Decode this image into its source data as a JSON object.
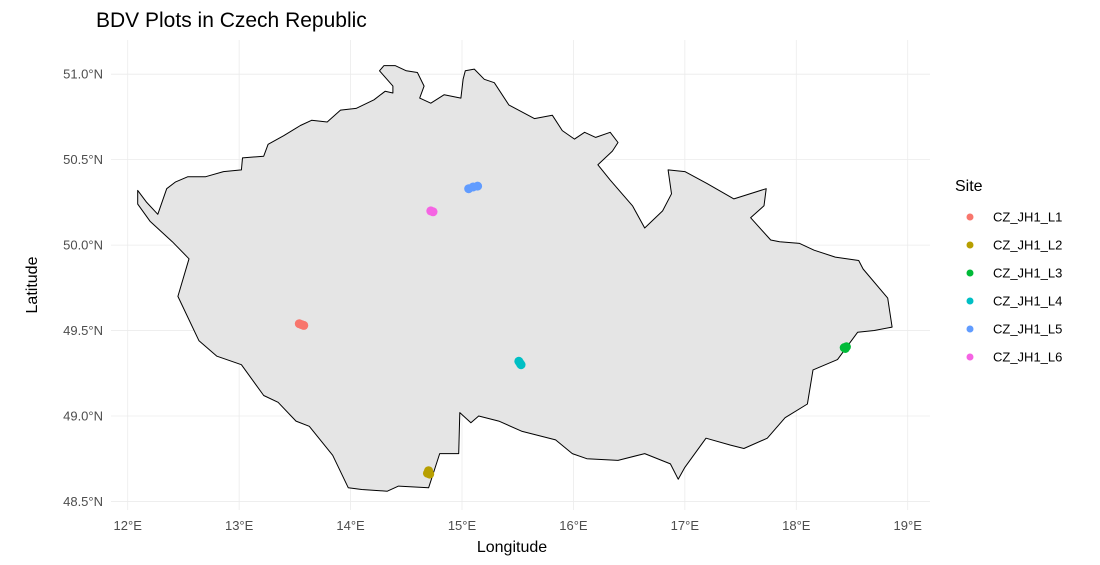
{
  "chart_data": {
    "type": "scatter",
    "title": "BDV Plots in Czech Republic",
    "xlabel": "Longitude",
    "ylabel": "Latitude",
    "xlim": [
      11.85,
      19.2
    ],
    "ylim": [
      48.45,
      51.2
    ],
    "x_ticks": [
      {
        "value": 12,
        "label": "12°E"
      },
      {
        "value": 13,
        "label": "13°E"
      },
      {
        "value": 14,
        "label": "14°E"
      },
      {
        "value": 15,
        "label": "15°E"
      },
      {
        "value": 16,
        "label": "16°E"
      },
      {
        "value": 17,
        "label": "17°E"
      },
      {
        "value": 18,
        "label": "18°E"
      },
      {
        "value": 19,
        "label": "19°E"
      }
    ],
    "y_ticks": [
      {
        "value": 48.5,
        "label": "48.5°N"
      },
      {
        "value": 49.0,
        "label": "49.0°N"
      },
      {
        "value": 49.5,
        "label": "49.5°N"
      },
      {
        "value": 50.0,
        "label": "50.0°N"
      },
      {
        "value": 50.5,
        "label": "50.5°N"
      },
      {
        "value": 51.0,
        "label": "51.0°N"
      }
    ],
    "grid": true,
    "legend": {
      "title": "Site",
      "placement": "right"
    },
    "series": [
      {
        "name": "CZ_JH1_L1",
        "color": "#F8766D",
        "points": [
          [
            13.54,
            49.54
          ],
          [
            13.58,
            49.53
          ],
          [
            13.56,
            49.535
          ]
        ]
      },
      {
        "name": "CZ_JH1_L2",
        "color": "#B79F00",
        "points": [
          [
            14.7,
            48.68
          ],
          [
            14.71,
            48.66
          ],
          [
            14.69,
            48.665
          ]
        ]
      },
      {
        "name": "CZ_JH1_L3",
        "color": "#00BA38",
        "points": [
          [
            18.43,
            49.4
          ],
          [
            18.45,
            49.405
          ],
          [
            18.44,
            49.395
          ]
        ]
      },
      {
        "name": "CZ_JH1_L4",
        "color": "#00BFC4",
        "points": [
          [
            15.51,
            49.32
          ],
          [
            15.53,
            49.3
          ],
          [
            15.52,
            49.31
          ]
        ]
      },
      {
        "name": "CZ_JH1_L5",
        "color": "#619CFF",
        "points": [
          [
            15.06,
            50.33
          ],
          [
            15.14,
            50.345
          ],
          [
            15.1,
            50.34
          ]
        ]
      },
      {
        "name": "CZ_JH1_L6",
        "color": "#F564E3",
        "points": [
          [
            14.72,
            50.2
          ],
          [
            14.74,
            50.195
          ]
        ]
      }
    ],
    "basemap": {
      "fill": "#E5E5E5",
      "stroke": "#000000",
      "outline": [
        [
          12.09,
          50.32
        ],
        [
          12.17,
          50.25
        ],
        [
          12.27,
          50.18
        ],
        [
          12.35,
          50.33
        ],
        [
          12.43,
          50.37
        ],
        [
          12.54,
          50.4
        ],
        [
          12.7,
          50.4
        ],
        [
          12.86,
          50.43
        ],
        [
          13.02,
          50.44
        ],
        [
          13.03,
          50.51
        ],
        [
          13.22,
          50.52
        ],
        [
          13.26,
          50.59
        ],
        [
          13.4,
          50.64
        ],
        [
          13.55,
          50.7
        ],
        [
          13.65,
          50.73
        ],
        [
          13.79,
          50.72
        ],
        [
          13.91,
          50.79
        ],
        [
          14.05,
          50.8
        ],
        [
          14.21,
          50.85
        ],
        [
          14.31,
          50.9
        ],
        [
          14.38,
          50.89
        ],
        [
          14.38,
          50.93
        ],
        [
          14.26,
          51.02
        ],
        [
          14.3,
          51.05
        ],
        [
          14.4,
          51.05
        ],
        [
          14.5,
          51.02
        ],
        [
          14.6,
          51.01
        ],
        [
          14.66,
          50.93
        ],
        [
          14.62,
          50.86
        ],
        [
          14.72,
          50.83
        ],
        [
          14.84,
          50.88
        ],
        [
          14.99,
          50.86
        ],
        [
          15.01,
          50.97
        ],
        [
          15.03,
          51.02
        ],
        [
          15.11,
          51.03
        ],
        [
          15.2,
          50.97
        ],
        [
          15.29,
          50.95
        ],
        [
          15.42,
          50.82
        ],
        [
          15.65,
          50.74
        ],
        [
          15.81,
          50.76
        ],
        [
          15.9,
          50.67
        ],
        [
          16.01,
          50.62
        ],
        [
          16.1,
          50.66
        ],
        [
          16.2,
          50.63
        ],
        [
          16.33,
          50.66
        ],
        [
          16.4,
          50.6
        ],
        [
          16.35,
          50.55
        ],
        [
          16.22,
          50.47
        ],
        [
          16.33,
          50.38
        ],
        [
          16.53,
          50.23
        ],
        [
          16.64,
          50.1
        ],
        [
          16.8,
          50.2
        ],
        [
          16.88,
          50.3
        ],
        [
          16.85,
          50.44
        ],
        [
          17.0,
          50.43
        ],
        [
          17.2,
          50.36
        ],
        [
          17.44,
          50.27
        ],
        [
          17.73,
          50.33
        ],
        [
          17.71,
          50.23
        ],
        [
          17.59,
          50.16
        ],
        [
          17.77,
          50.03
        ],
        [
          17.85,
          50.02
        ],
        [
          18.03,
          50.01
        ],
        [
          18.16,
          49.97
        ],
        [
          18.35,
          49.93
        ],
        [
          18.56,
          49.91
        ],
        [
          18.6,
          49.86
        ],
        [
          18.82,
          49.69
        ],
        [
          18.86,
          49.52
        ],
        [
          18.7,
          49.5
        ],
        [
          18.55,
          49.49
        ],
        [
          18.37,
          49.33
        ],
        [
          18.15,
          49.27
        ],
        [
          18.1,
          49.07
        ],
        [
          17.9,
          48.99
        ],
        [
          17.74,
          48.87
        ],
        [
          17.53,
          48.81
        ],
        [
          17.41,
          48.83
        ],
        [
          17.19,
          48.87
        ],
        [
          17.0,
          48.7
        ],
        [
          16.94,
          48.63
        ],
        [
          16.87,
          48.72
        ],
        [
          16.64,
          48.78
        ],
        [
          16.4,
          48.74
        ],
        [
          16.12,
          48.75
        ],
        [
          15.99,
          48.78
        ],
        [
          15.84,
          48.86
        ],
        [
          15.54,
          48.91
        ],
        [
          15.33,
          48.97
        ],
        [
          15.15,
          49.0
        ],
        [
          15.08,
          48.96
        ],
        [
          14.98,
          49.02
        ],
        [
          14.97,
          48.78
        ],
        [
          14.8,
          48.78
        ],
        [
          14.7,
          48.58
        ],
        [
          14.43,
          48.59
        ],
        [
          14.33,
          48.56
        ],
        [
          14.1,
          48.57
        ],
        [
          13.98,
          48.58
        ],
        [
          13.84,
          48.77
        ],
        [
          13.63,
          48.94
        ],
        [
          13.51,
          48.97
        ],
        [
          13.35,
          49.08
        ],
        [
          13.22,
          49.12
        ],
        [
          13.02,
          49.3
        ],
        [
          12.8,
          49.35
        ],
        [
          12.64,
          49.44
        ],
        [
          12.45,
          49.7
        ],
        [
          12.55,
          49.92
        ],
        [
          12.4,
          50.02
        ],
        [
          12.2,
          50.14
        ],
        [
          12.09,
          50.24
        ],
        [
          12.09,
          50.32
        ]
      ]
    }
  }
}
